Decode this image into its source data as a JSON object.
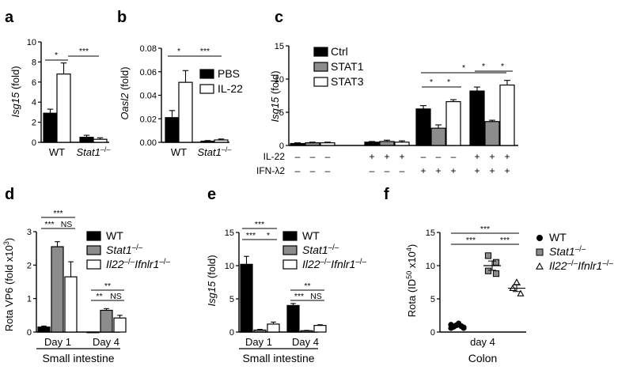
{
  "colors": {
    "black": "#000000",
    "gray": "#8c8c8c",
    "white": "#ffffff"
  },
  "chart_data": [
    {
      "panel": "a",
      "type": "bar",
      "ylabel": [
        "Isg15",
        " (fold)"
      ],
      "yticks": [
        "0",
        "2",
        "4",
        "6",
        "8",
        "10"
      ],
      "ylim": [
        0,
        10
      ],
      "groups": [
        "WT",
        "Stat1",
        "–/–"
      ],
      "series": [
        {
          "values": [
            2.9,
            0.5
          ],
          "err": [
            0.4,
            0.2
          ],
          "color": "black"
        },
        {
          "values": [
            6.8,
            0.3
          ],
          "err": [
            1.1,
            0.15
          ],
          "color": "white"
        }
      ],
      "significance": [
        "*",
        "***"
      ]
    },
    {
      "panel": "b",
      "type": "bar",
      "ylabel": [
        "Oasl2",
        " (fold)"
      ],
      "yticks": [
        "0.00",
        "0.02",
        "0.04",
        "0.06",
        "0.08"
      ],
      "ylim": [
        0,
        0.08
      ],
      "groups": [
        "WT",
        "Stat1",
        "–/–"
      ],
      "series": [
        {
          "name": "PBS",
          "values": [
            0.021,
            0.001
          ],
          "err": [
            0.006,
            0.0005
          ],
          "color": "black"
        },
        {
          "name": "IL-22",
          "values": [
            0.051,
            0.002
          ],
          "err": [
            0.01,
            0.0008
          ],
          "color": "white"
        }
      ],
      "significance": [
        "*",
        "***"
      ]
    },
    {
      "panel": "c",
      "type": "bar",
      "ylabel": [
        "Isg15",
        " (fold)"
      ],
      "yticks": [
        "0",
        "5",
        "10",
        "15"
      ],
      "ylim": [
        0,
        15
      ],
      "series": [
        {
          "name": "Ctrl",
          "values": [
            0.3,
            0.5,
            5.5,
            8.2
          ],
          "err": [
            0.1,
            0.1,
            0.5,
            0.6
          ],
          "color": "black"
        },
        {
          "name": "STAT1",
          "values": [
            0.4,
            0.6,
            2.6,
            3.6
          ],
          "err": [
            0.1,
            0.2,
            0.5,
            0.2
          ],
          "color": "gray"
        },
        {
          "name": "STAT3",
          "values": [
            0.4,
            0.5,
            6.6,
            9.1
          ],
          "err": [
            0.1,
            0.2,
            0.3,
            0.7
          ],
          "color": "white"
        }
      ],
      "treatments": {
        "IL-22": [
          "–",
          "–",
          "–",
          "+",
          "+",
          "+",
          "–",
          "–",
          "–",
          "+",
          "+",
          "+"
        ],
        "IFN-λ2": [
          "–",
          "–",
          "–",
          "–",
          "–",
          "–",
          "+",
          "+",
          "+",
          "+",
          "+",
          "+"
        ]
      },
      "significance": [
        "*",
        "*",
        "*",
        "*",
        "*"
      ]
    },
    {
      "panel": "d",
      "type": "bar",
      "ylabel": [
        "Rota VP6 (fold x10",
        "3",
        ")"
      ],
      "yticks": [
        "0",
        "1",
        "2",
        "3"
      ],
      "ylim": [
        0,
        3
      ],
      "categories": [
        "Day 1",
        "Day 4"
      ],
      "xlabel": "Small intestine",
      "series": [
        {
          "name": "WT",
          "values": [
            0.15,
            0.0
          ],
          "err": [
            0.03,
            0.0
          ],
          "color": "black"
        },
        {
          "name": "Stat1",
          "sup": "–/–",
          "values": [
            2.55,
            0.65
          ],
          "err": [
            0.15,
            0.05
          ],
          "color": "gray"
        },
        {
          "name": "Il22",
          "sup": "–/–",
          "name2": "Ifnlr1",
          "sup2": "–/–",
          "values": [
            1.65,
            0.42
          ],
          "err": [
            0.45,
            0.08
          ],
          "color": "white"
        }
      ],
      "significance": [
        "***",
        "***",
        "NS",
        "**",
        "**",
        "NS"
      ]
    },
    {
      "panel": "e",
      "type": "bar",
      "ylabel": [
        "Isg15",
        " (fold)"
      ],
      "yticks": [
        "0",
        "5",
        "10",
        "15"
      ],
      "ylim": [
        0,
        15
      ],
      "categories": [
        "Day 1",
        "Day 4"
      ],
      "xlabel": "Small intestine",
      "series": [
        {
          "name": "WT",
          "values": [
            10.2,
            4.0
          ],
          "err": [
            1.2,
            0.3
          ],
          "color": "black"
        },
        {
          "name": "Stat1",
          "sup": "–/–",
          "values": [
            0.3,
            0.2
          ],
          "err": [
            0.1,
            0.05
          ],
          "color": "gray"
        },
        {
          "name": "Il22",
          "sup": "–/–",
          "name2": "Ifnlr1",
          "sup2": "–/–",
          "values": [
            1.2,
            1.0
          ],
          "err": [
            0.3,
            0.1
          ],
          "color": "white"
        }
      ],
      "significance": [
        "***",
        "***",
        "*",
        "**",
        "***",
        "NS"
      ]
    },
    {
      "panel": "f",
      "type": "scatter",
      "ylabel": [
        "Rota (ID",
        "50",
        " x10",
        "4",
        ")"
      ],
      "yticks": [
        "0",
        "5",
        "10",
        "15"
      ],
      "ylim": [
        0,
        15
      ],
      "xtick": "day 4",
      "xlabel": "Colon",
      "series": [
        {
          "name": "WT",
          "marker": "circle",
          "points": [
            0.6,
            0.8,
            1.0,
            1.2,
            0.9,
            0.7,
            1.1,
            0.8,
            1.0,
            1.3,
            0.9,
            0.6
          ],
          "mean": 0.9,
          "sem": 0.1
        },
        {
          "name": "Stat1",
          "sup": "–/–",
          "marker": "square",
          "points": [
            11.5,
            10.5,
            9.2,
            8.8
          ],
          "mean": 10.0,
          "sem": 0.7
        },
        {
          "name": "Il22",
          "sup": "–/–",
          "name2": "Ifnlr1",
          "sup2": "–/–",
          "marker": "triangle",
          "points": [
            7.5,
            6.6,
            5.8
          ],
          "mean": 6.6,
          "sem": 0.5
        }
      ],
      "significance": [
        "***",
        "***",
        "***"
      ]
    }
  ]
}
